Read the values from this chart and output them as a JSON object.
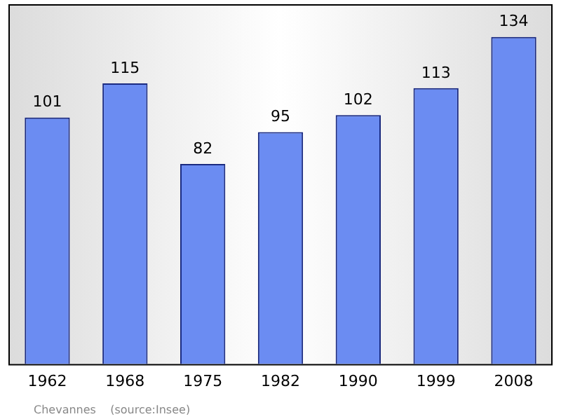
{
  "chart_data": {
    "type": "bar",
    "categories": [
      "1962",
      "1968",
      "1975",
      "1982",
      "1990",
      "1999",
      "2008"
    ],
    "values": [
      101,
      115,
      82,
      95,
      102,
      113,
      134
    ],
    "color": "#6b8cf2",
    "data_labels": true,
    "grid": false,
    "legend": false,
    "annotations": [
      "Chevannes    (source:Insee)"
    ]
  }
}
